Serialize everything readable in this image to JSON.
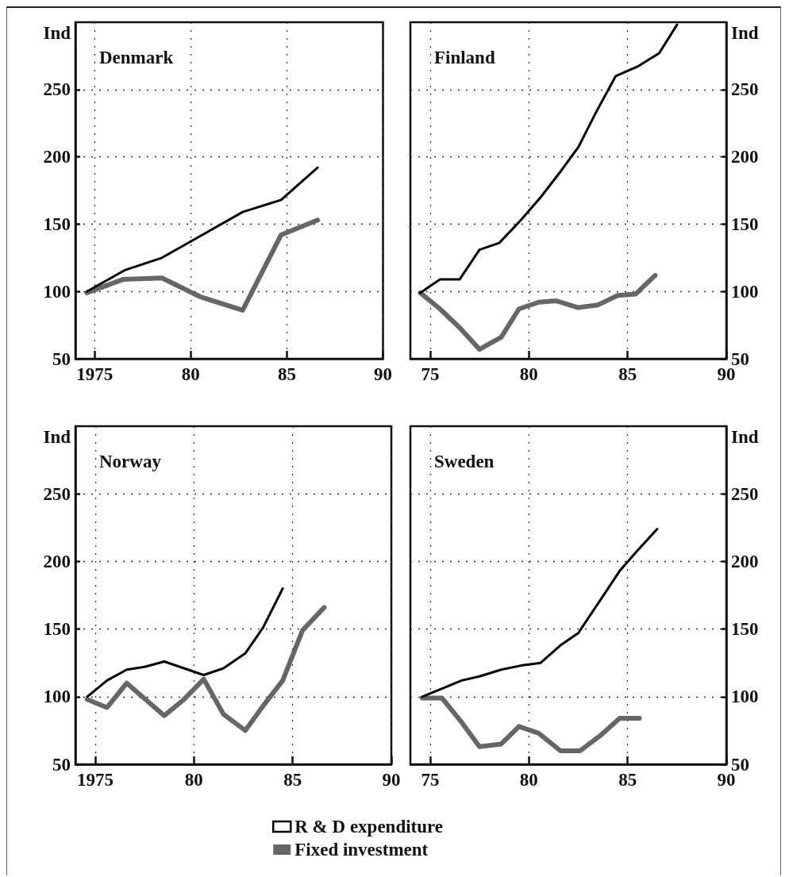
{
  "chart_data": [
    {
      "type": "line",
      "title": "Denmark",
      "ylabel": "Ind",
      "xlim": [
        1974,
        1990
      ],
      "ylim": [
        50,
        300
      ],
      "xticks": [
        {
          "value": 1975,
          "label": "1975"
        },
        {
          "value": 1980,
          "label": "80"
        },
        {
          "value": 1985,
          "label": "85"
        },
        {
          "value": 1990,
          "label": "90"
        }
      ],
      "yticks": [
        50,
        100,
        150,
        200,
        250
      ],
      "grid": true,
      "marker": "none",
      "series": [
        {
          "color": "#000000",
          "x": [
            1974.6,
            1976.6,
            1978.5,
            1980.6,
            1982.7,
            1984.7,
            1986.6
          ],
          "values": [
            100,
            116,
            125,
            142,
            159,
            168,
            192
          ]
        },
        {
          "color": "#666666",
          "x": [
            1974.6,
            1976.5,
            1978.5,
            1980.5,
            1982.7,
            1984.7,
            1986.6
          ],
          "values": [
            99,
            109,
            110,
            96,
            86,
            142,
            153
          ]
        }
      ]
    },
    {
      "type": "line",
      "title": "Finland",
      "ylabel": "Ind",
      "xlim": [
        1974,
        1990
      ],
      "ylim": [
        50,
        300
      ],
      "xticks": [
        {
          "value": 1975,
          "label": "75"
        },
        {
          "value": 1980,
          "label": "80"
        },
        {
          "value": 1985,
          "label": "85"
        },
        {
          "value": 1990,
          "label": "90"
        }
      ],
      "yticks": [
        50,
        100,
        150,
        200,
        250
      ],
      "grid": true,
      "marker": "none",
      "series": [
        {
          "color": "#000000",
          "x": [
            1974.5,
            1975.5,
            1976.5,
            1977.5,
            1978.5,
            1979.6,
            1980.6,
            1981.6,
            1982.5,
            1983.4,
            1984.4,
            1985.5,
            1986.6,
            1987.5
          ],
          "values": [
            99,
            109,
            109,
            131,
            136,
            153,
            170,
            189,
            207,
            233,
            260,
            267,
            277,
            298
          ]
        },
        {
          "color": "#666666",
          "x": [
            1974.5,
            1975.5,
            1976.5,
            1977.5,
            1978.6,
            1979.5,
            1980.5,
            1981.4,
            1982.5,
            1983.5,
            1984.5,
            1985.4,
            1986.4
          ],
          "values": [
            99,
            87,
            73,
            57,
            66,
            87,
            92,
            93,
            88,
            90,
            97,
            98,
            112
          ]
        }
      ]
    },
    {
      "type": "line",
      "title": "Norway",
      "ylabel": "Ind",
      "xlim": [
        1974,
        1990
      ],
      "ylim": [
        50,
        300
      ],
      "xticks": [
        {
          "value": 1975,
          "label": "1975"
        },
        {
          "value": 1980,
          "label": "80"
        },
        {
          "value": 1985,
          "label": "85"
        },
        {
          "value": 1990,
          "label": "90"
        }
      ],
      "yticks": [
        50,
        100,
        150,
        200,
        250
      ],
      "grid": true,
      "marker": "none",
      "legend": "bottom",
      "series": [
        {
          "name": "R & D expenditure",
          "color": "#000000",
          "x": [
            1974.6,
            1975.6,
            1976.6,
            1977.5,
            1978.5,
            1979.5,
            1980.5,
            1981.5,
            1982.6,
            1983.5,
            1984.5
          ],
          "values": [
            100,
            112,
            120,
            122,
            126,
            121,
            116,
            121,
            132,
            151,
            180
          ]
        },
        {
          "name": "Fixed investment",
          "color": "#666666",
          "x": [
            1974.6,
            1975.6,
            1976.6,
            1978.5,
            1979.5,
            1980.5,
            1981.5,
            1982.6,
            1983.6,
            1984.5,
            1985.5,
            1986.6
          ],
          "values": [
            98,
            92,
            110,
            86,
            98,
            113,
            87,
            75,
            95,
            112,
            149,
            166
          ]
        }
      ]
    },
    {
      "type": "line",
      "title": "Sweden",
      "ylabel": "Ind",
      "xlim": [
        1974,
        1990
      ],
      "ylim": [
        50,
        300
      ],
      "xticks": [
        {
          "value": 1975,
          "label": "75"
        },
        {
          "value": 1980,
          "label": "80"
        },
        {
          "value": 1985,
          "label": "85"
        },
        {
          "value": 1990,
          "label": "90"
        }
      ],
      "yticks": [
        50,
        100,
        150,
        200,
        250
      ],
      "grid": true,
      "marker": "none",
      "series": [
        {
          "color": "#000000",
          "x": [
            1974.6,
            1975.6,
            1976.6,
            1977.5,
            1978.6,
            1979.6,
            1980.6,
            1981.6,
            1982.5,
            1983.6,
            1984.6,
            1985.5,
            1986.5
          ],
          "values": [
            100,
            106,
            112,
            115,
            120,
            123,
            125,
            138,
            147,
            171,
            193,
            208,
            224
          ]
        },
        {
          "color": "#666666",
          "x": [
            1974.6,
            1975.6,
            1976.6,
            1977.5,
            1978.6,
            1979.5,
            1980.5,
            1981.6,
            1982.6,
            1983.6,
            1984.6,
            1985.6
          ],
          "values": [
            99,
            99,
            81,
            63,
            65,
            78,
            73,
            60,
            60,
            71,
            84,
            84
          ]
        }
      ]
    }
  ]
}
